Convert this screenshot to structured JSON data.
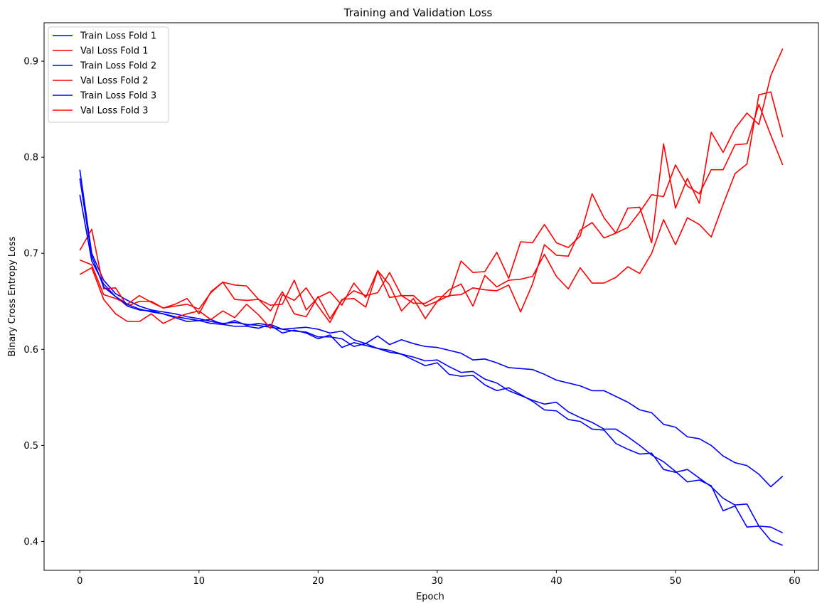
{
  "chart_data": {
    "type": "line",
    "title": "Training and Validation Loss",
    "xlabel": "Epoch",
    "ylabel": "Binary Cross Entropy Loss",
    "xlim": [
      -3,
      62
    ],
    "ylim": [
      0.37,
      0.94
    ],
    "xticks": [
      0,
      10,
      20,
      30,
      40,
      50,
      60
    ],
    "yticks": [
      0.4,
      0.5,
      0.6,
      0.7,
      0.8,
      0.9
    ],
    "grid": false,
    "legend": "top-left",
    "colors": {
      "train": "#0000ff",
      "val": "#ff0000"
    },
    "x": [
      0,
      1,
      2,
      3,
      4,
      5,
      6,
      7,
      8,
      9,
      10,
      11,
      12,
      13,
      14,
      15,
      16,
      17,
      18,
      19,
      20,
      21,
      22,
      23,
      24,
      25,
      26,
      27,
      28,
      29,
      30,
      31,
      32,
      33,
      34,
      35,
      36,
      37,
      38,
      39,
      40,
      41,
      42,
      43,
      44,
      45,
      46,
      47,
      48,
      49,
      50,
      51,
      52,
      53,
      54,
      55,
      56,
      57,
      58,
      59
    ],
    "series": [
      {
        "name": "Train Loss Fold 1",
        "color": "#0000ff",
        "values": [
          0.787,
          0.7,
          0.672,
          0.658,
          0.651,
          0.645,
          0.641,
          0.639,
          0.637,
          0.634,
          0.632,
          0.629,
          0.627,
          0.628,
          0.626,
          0.625,
          0.623,
          0.621,
          0.622,
          0.623,
          0.621,
          0.617,
          0.619,
          0.61,
          0.606,
          0.614,
          0.605,
          0.61,
          0.606,
          0.603,
          0.602,
          0.599,
          0.596,
          0.589,
          0.59,
          0.586,
          0.581,
          0.58,
          0.579,
          0.574,
          0.568,
          0.565,
          0.562,
          0.557,
          0.557,
          0.551,
          0.545,
          0.537,
          0.534,
          0.522,
          0.519,
          0.509,
          0.507,
          0.5,
          0.489,
          0.482,
          0.479,
          0.47,
          0.457,
          0.468
        ]
      },
      {
        "name": "Val Loss Fold 1",
        "color": "#ff0000",
        "values": [
          0.703,
          0.725,
          0.663,
          0.664,
          0.645,
          0.65,
          0.65,
          0.643,
          0.645,
          0.647,
          0.642,
          0.659,
          0.67,
          0.652,
          0.651,
          0.652,
          0.646,
          0.647,
          0.672,
          0.641,
          0.654,
          0.66,
          0.646,
          0.669,
          0.654,
          0.682,
          0.654,
          0.656,
          0.648,
          0.648,
          0.655,
          0.655,
          0.692,
          0.68,
          0.681,
          0.701,
          0.674,
          0.712,
          0.711,
          0.73,
          0.711,
          0.706,
          0.718,
          0.762,
          0.737,
          0.721,
          0.747,
          0.748,
          0.711,
          0.814,
          0.747,
          0.778,
          0.752,
          0.826,
          0.805,
          0.83,
          0.846,
          0.834,
          0.885,
          0.913
        ]
      },
      {
        "name": "Train Loss Fold 2",
        "color": "#0000ff",
        "values": [
          0.778,
          0.697,
          0.665,
          0.655,
          0.645,
          0.641,
          0.64,
          0.637,
          0.633,
          0.629,
          0.63,
          0.631,
          0.626,
          0.63,
          0.625,
          0.627,
          0.625,
          0.617,
          0.62,
          0.617,
          0.611,
          0.615,
          0.602,
          0.607,
          0.604,
          0.601,
          0.597,
          0.595,
          0.589,
          0.583,
          0.586,
          0.574,
          0.572,
          0.573,
          0.563,
          0.557,
          0.56,
          0.553,
          0.546,
          0.537,
          0.536,
          0.527,
          0.525,
          0.517,
          0.516,
          0.502,
          0.496,
          0.491,
          0.492,
          0.475,
          0.472,
          0.475,
          0.466,
          0.457,
          0.445,
          0.438,
          0.439,
          0.416,
          0.401,
          0.396
        ]
      },
      {
        "name": "Val Loss Fold 2",
        "color": "#ff0000",
        "values": [
          0.693,
          0.688,
          0.657,
          0.653,
          0.647,
          0.656,
          0.649,
          0.643,
          0.647,
          0.653,
          0.637,
          0.66,
          0.67,
          0.667,
          0.666,
          0.652,
          0.64,
          0.66,
          0.637,
          0.634,
          0.655,
          0.632,
          0.651,
          0.661,
          0.656,
          0.659,
          0.68,
          0.656,
          0.656,
          0.645,
          0.65,
          0.662,
          0.668,
          0.645,
          0.677,
          0.665,
          0.672,
          0.673,
          0.676,
          0.699,
          0.676,
          0.663,
          0.685,
          0.669,
          0.669,
          0.675,
          0.686,
          0.679,
          0.7,
          0.735,
          0.709,
          0.737,
          0.73,
          0.717,
          0.751,
          0.783,
          0.793,
          0.865,
          0.868,
          0.821
        ]
      },
      {
        "name": "Train Loss Fold 3",
        "color": "#0000ff",
        "values": [
          0.761,
          0.692,
          0.668,
          0.655,
          0.647,
          0.642,
          0.639,
          0.637,
          0.634,
          0.632,
          0.63,
          0.627,
          0.626,
          0.624,
          0.624,
          0.622,
          0.626,
          0.621,
          0.619,
          0.618,
          0.613,
          0.613,
          0.611,
          0.603,
          0.606,
          0.601,
          0.599,
          0.595,
          0.592,
          0.588,
          0.589,
          0.582,
          0.576,
          0.577,
          0.569,
          0.565,
          0.557,
          0.552,
          0.547,
          0.543,
          0.545,
          0.535,
          0.529,
          0.524,
          0.517,
          0.517,
          0.509,
          0.5,
          0.49,
          0.483,
          0.473,
          0.462,
          0.464,
          0.458,
          0.432,
          0.437,
          0.415,
          0.416,
          0.415,
          0.409
        ]
      },
      {
        "name": "Val Loss Fold 3",
        "color": "#ff0000",
        "values": [
          0.678,
          0.685,
          0.652,
          0.637,
          0.629,
          0.629,
          0.637,
          0.627,
          0.633,
          0.637,
          0.64,
          0.631,
          0.64,
          0.633,
          0.647,
          0.636,
          0.622,
          0.657,
          0.651,
          0.664,
          0.645,
          0.628,
          0.652,
          0.653,
          0.644,
          0.682,
          0.667,
          0.64,
          0.653,
          0.632,
          0.65,
          0.656,
          0.657,
          0.664,
          0.662,
          0.661,
          0.667,
          0.639,
          0.668,
          0.709,
          0.698,
          0.697,
          0.724,
          0.732,
          0.716,
          0.721,
          0.727,
          0.743,
          0.761,
          0.759,
          0.792,
          0.77,
          0.762,
          0.787,
          0.787,
          0.813,
          0.814,
          0.855,
          0.823,
          0.792
        ]
      }
    ]
  }
}
